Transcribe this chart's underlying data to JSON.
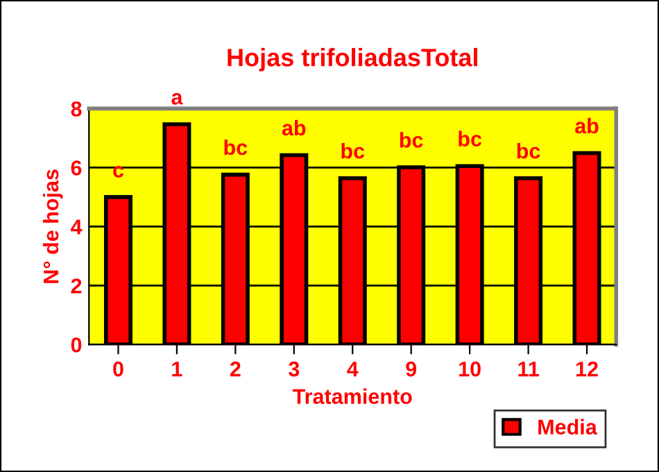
{
  "chart_data": {
    "type": "bar",
    "title": "Hojas trifoliadasTotal",
    "xlabel": "Tratamiento",
    "ylabel": "N° de hojas",
    "categories": [
      "0",
      "1",
      "2",
      "3",
      "4",
      "9",
      "10",
      "11",
      "12"
    ],
    "series": [
      {
        "name": "Media",
        "color": "#ff0000",
        "values": [
          5.0,
          7.47,
          5.76,
          6.42,
          5.64,
          6.01,
          6.05,
          5.64,
          6.49
        ]
      }
    ],
    "annotations": [
      {
        "text": "c",
        "x": "0",
        "y": 5.0
      },
      {
        "text": "a",
        "x": "1",
        "y": 7.47
      },
      {
        "text": "bc",
        "x": "2",
        "y": 5.76
      },
      {
        "text": "ab",
        "x": "3",
        "y": 6.42
      },
      {
        "text": "bc",
        "x": "4",
        "y": 5.64
      },
      {
        "text": "bc",
        "x": "9",
        "y": 6.01
      },
      {
        "text": "bc",
        "x": "10",
        "y": 6.05
      },
      {
        "text": "bc",
        "x": "11",
        "y": 5.64
      },
      {
        "text": "ab",
        "x": "12",
        "y": 6.49
      }
    ],
    "ylim": [
      0,
      8
    ],
    "yticks": [
      0,
      2,
      4,
      6,
      8
    ],
    "grid": "y",
    "legend": "bottom right"
  }
}
